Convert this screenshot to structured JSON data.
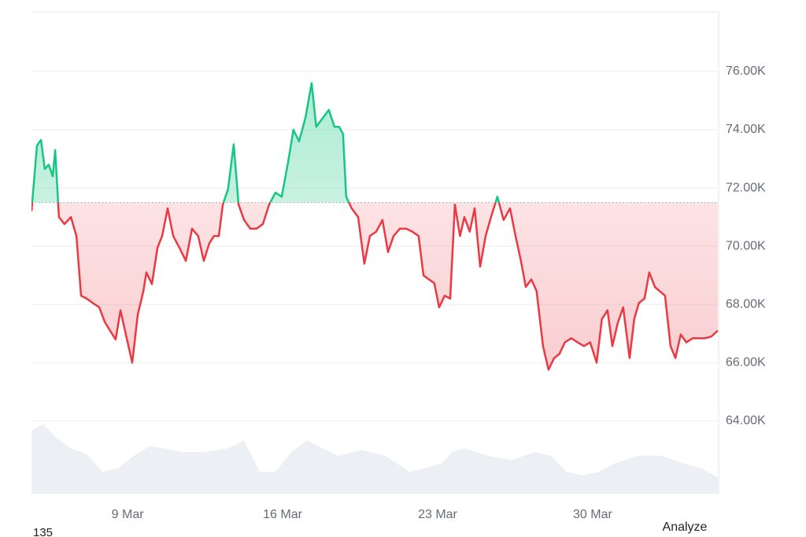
{
  "chart_data": {
    "type": "line",
    "x": [
      4.66,
      4.91,
      5.09,
      5.26,
      5.44,
      5.62,
      5.73,
      5.9,
      6.15,
      6.44,
      6.69,
      6.9,
      7.15,
      7.43,
      7.72,
      7.97,
      8.21,
      8.46,
      8.68,
      8.92,
      9.21,
      9.46,
      9.71,
      9.85,
      10.1,
      10.35,
      10.56,
      10.81,
      11.06,
      11.34,
      11.63,
      11.91,
      12.19,
      12.44,
      12.69,
      12.9,
      13.12,
      13.3,
      13.54,
      13.79,
      14.01,
      14.26,
      14.54,
      14.82,
      15.11,
      15.39,
      15.68,
      15.96,
      16.25,
      16.49,
      16.74,
      17.03,
      17.31,
      17.52,
      17.81,
      18.09,
      18.34,
      18.55,
      18.73,
      18.87,
      19.12,
      19.41,
      19.69,
      19.94,
      20.23,
      20.51,
      20.76,
      21.01,
      21.29,
      21.58,
      21.86,
      22.14,
      22.36,
      22.61,
      22.85,
      23.07,
      23.32,
      23.57,
      23.78,
      24.01,
      24.21,
      24.45,
      24.67,
      24.92,
      25.17,
      25.41,
      25.7,
      25.98,
      26.27,
      26.52,
      26.76,
      26.98,
      27.23,
      27.47,
      27.76,
      28.01,
      28.26,
      28.5,
      28.75,
      29.04,
      29.32,
      29.61,
      29.89,
      30.18,
      30.42,
      30.67,
      30.89,
      31.13,
      31.38,
      31.67,
      31.88,
      32.09,
      32.34,
      32.56,
      32.81,
      33.02,
      33.27,
      33.52,
      33.74,
      33.98,
      34.23,
      34.52,
      34.8,
      35.08,
      35.36,
      35.65
    ],
    "values": [
      71200,
      73460,
      73650,
      72650,
      72800,
      72400,
      73300,
      71000,
      70760,
      71000,
      70350,
      68300,
      68200,
      68050,
      67900,
      67400,
      67100,
      66800,
      67800,
      66970,
      66000,
      67650,
      68450,
      69100,
      68700,
      69950,
      70350,
      71300,
      70350,
      69950,
      69500,
      70600,
      70350,
      69500,
      70100,
      70350,
      70350,
      71430,
      71970,
      73500,
      71430,
      70900,
      70600,
      70600,
      70760,
      71430,
      71840,
      71700,
      72900,
      74000,
      73600,
      74400,
      75600,
      74100,
      74400,
      74680,
      74100,
      74100,
      73860,
      71700,
      71300,
      71000,
      69400,
      70350,
      70500,
      70900,
      69800,
      70350,
      70600,
      70600,
      70500,
      70350,
      69000,
      68860,
      68730,
      67900,
      68300,
      68200,
      71430,
      70350,
      71000,
      70500,
      71300,
      69300,
      70350,
      71000,
      71700,
      70900,
      71300,
      70350,
      69500,
      68600,
      68860,
      68460,
      66570,
      65760,
      66160,
      66300,
      66700,
      66840,
      66700,
      66570,
      66700,
      66000,
      67500,
      67800,
      66570,
      67350,
      67900,
      66160,
      67500,
      68050,
      68200,
      69100,
      68600,
      68460,
      68300,
      66570,
      66160,
      66970,
      66700,
      66840,
      66840,
      66840,
      66900,
      67100
    ],
    "baseline": 71500,
    "up_color": "#16c784",
    "down_color": "#ea3943",
    "xlim": [
      4.66,
      35.69
    ],
    "xticks": [
      {
        "value": 9,
        "label": "9 Mar"
      },
      {
        "value": 16,
        "label": "16 Mar"
      },
      {
        "value": 23,
        "label": "23 Mar"
      },
      {
        "value": 30,
        "label": "30 Mar"
      }
    ],
    "ylim": [
      61500,
      78050
    ],
    "yticks": [
      {
        "value": 64000,
        "label": "64.00K"
      },
      {
        "value": 66000,
        "label": "66.00K"
      },
      {
        "value": 68000,
        "label": "68.00K"
      },
      {
        "value": 70000,
        "label": "70.00K"
      },
      {
        "value": 72000,
        "label": "72.00K"
      },
      {
        "value": 74000,
        "label": "74.00K"
      },
      {
        "value": 76000,
        "label": "76.00K"
      }
    ],
    "grid": true,
    "volume": {
      "color": "#eceff3",
      "x": [
        4.66,
        5.19,
        5.73,
        6.44,
        7.15,
        7.86,
        8.57,
        9.28,
        9.99,
        10.7,
        11.41,
        12.48,
        13.54,
        14.26,
        14.97,
        15.68,
        16.39,
        17.1,
        17.81,
        18.52,
        19.59,
        20.65,
        21.72,
        22.43,
        23.14,
        23.67,
        24.21,
        25.27,
        26.34,
        27.4,
        28.11,
        28.82,
        29.54,
        30.25,
        30.96,
        32.02,
        33.09,
        34.16,
        34.87,
        35.65
      ],
      "values": [
        86,
        95,
        78,
        62,
        54,
        30,
        35,
        52,
        65,
        62,
        57,
        57,
        62,
        73,
        30,
        30,
        57,
        73,
        62,
        52,
        60,
        52,
        30,
        35,
        41,
        57,
        62,
        52,
        46,
        57,
        52,
        30,
        25,
        30,
        41,
        52,
        52,
        41,
        35,
        23
      ],
      "ylim": [
        0,
        100
      ]
    },
    "annotations": [
      "135",
      "Analyze"
    ]
  }
}
